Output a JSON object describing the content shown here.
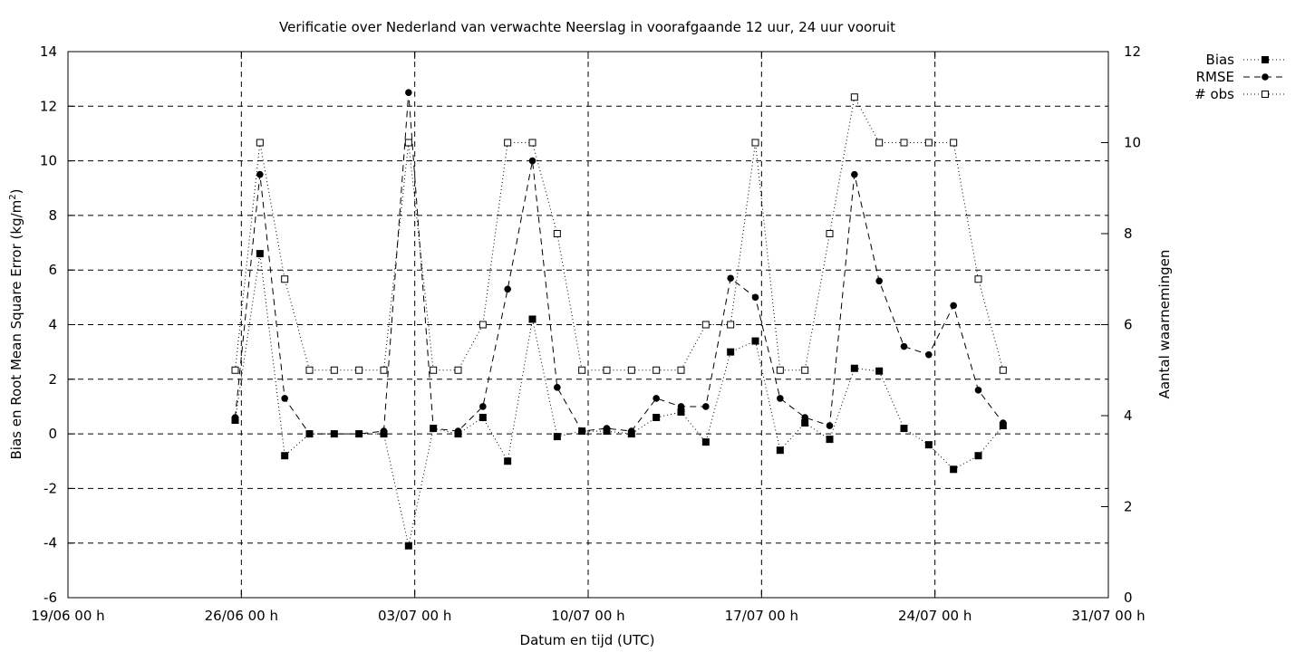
{
  "chart_data": {
    "type": "line",
    "title": "Verificatie over Nederland van verwachte Neerslag in voorafgaande 12 uur, 24 uur vooruit",
    "xlabel": "Datum en tijd (UTC)",
    "ylabel_main": "Bias en Root Mean Square Error (kg/m",
    "ylabel_sup": "2",
    "ylabel_close": ")",
    "y2label": "Aantal waarnemingen",
    "x_ticks": [
      "19/06 00 h",
      "26/06 00 h",
      "03/07 00 h",
      "10/07 00 h",
      "17/07 00 h",
      "24/07 00 h",
      "31/07 00 h"
    ],
    "x_tick_days": [
      0,
      7,
      14,
      21,
      28,
      35,
      42
    ],
    "y_ticks": [
      "14",
      "12",
      "10",
      "8",
      "6",
      "4",
      "2",
      "0",
      "-2",
      "-4",
      "-6"
    ],
    "y_tick_values": [
      14,
      12,
      10,
      8,
      6,
      4,
      2,
      0,
      -2,
      -4,
      -6
    ],
    "y2_ticks": [
      "12",
      "10",
      "8",
      "6",
      "4",
      "2",
      "0"
    ],
    "y2_tick_values": [
      12,
      10,
      8,
      6,
      4,
      2,
      0
    ],
    "ylim": [
      -6,
      14
    ],
    "y2lim": [
      0,
      12
    ],
    "xlim_days": [
      0,
      42
    ],
    "grid": true,
    "legend_position": "top-right, outside plot",
    "x_days": [
      6.75,
      7.75,
      8.75,
      9.75,
      10.75,
      11.75,
      12.75,
      13.75,
      14.75,
      15.75,
      16.75,
      17.75,
      18.75,
      19.75,
      20.75,
      21.75,
      22.75,
      23.75,
      24.75,
      25.75,
      26.75,
      27.75,
      28.75,
      29.75,
      30.75,
      31.75,
      32.75,
      33.75,
      34.75,
      35.75,
      36.75,
      37.75
    ],
    "series": [
      {
        "name": "Bias",
        "axis": "left",
        "marker": "filled-square",
        "dash": "dotted",
        "values": [
          0.5,
          6.6,
          -0.8,
          0.0,
          0.0,
          0.0,
          0.0,
          -4.1,
          0.2,
          0.0,
          0.6,
          -1.0,
          4.2,
          -0.1,
          0.1,
          0.1,
          0.0,
          0.6,
          0.8,
          -0.3,
          3.0,
          3.4,
          -0.6,
          0.4,
          -0.2,
          2.4,
          2.3,
          0.2,
          -0.4,
          -1.3,
          -0.8,
          0.3
        ]
      },
      {
        "name": "RMSE",
        "axis": "left",
        "marker": "filled-circle",
        "dash": "dashed",
        "values": [
          0.6,
          9.5,
          1.3,
          0.0,
          0.0,
          0.0,
          0.1,
          12.5,
          0.2,
          0.1,
          1.0,
          5.3,
          10.0,
          1.7,
          0.1,
          0.2,
          0.1,
          1.3,
          1.0,
          1.0,
          5.7,
          5.0,
          1.3,
          0.6,
          0.3,
          9.5,
          5.6,
          3.2,
          2.9,
          4.7,
          1.6,
          0.4
        ]
      },
      {
        "name": "# obs",
        "axis": "right",
        "marker": "open-square",
        "dash": "dotted",
        "values": [
          5,
          10,
          7,
          5,
          5,
          5,
          5,
          10,
          5,
          5,
          6,
          10,
          10,
          8,
          5,
          5,
          5,
          5,
          5,
          6,
          6,
          10,
          5,
          5,
          8,
          11,
          10,
          10,
          10,
          10,
          7,
          5
        ]
      }
    ]
  }
}
